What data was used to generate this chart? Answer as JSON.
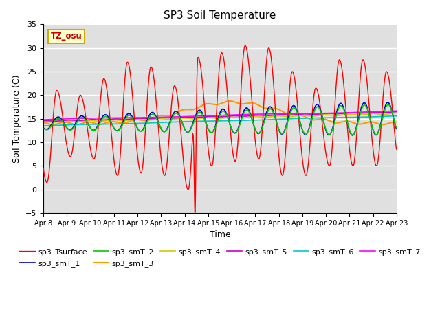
{
  "title": "SP3 Soil Temperature",
  "ylabel": "Soil Temperature (C)",
  "xlabel": "Time",
  "ylim": [
    -5,
    35
  ],
  "yticks": [
    -5,
    0,
    5,
    10,
    15,
    20,
    25,
    30,
    35
  ],
  "xtick_labels": [
    "Apr 8",
    "Apr 9",
    "Apr 10",
    "Apr 11",
    "Apr 12",
    "Apr 13",
    "Apr 14",
    "Apr 15",
    "Apr 16",
    "Apr 17",
    "Apr 18",
    "Apr 19",
    "Apr 20",
    "Apr 21",
    "Apr 22",
    "Apr 23"
  ],
  "annotation_text": "TZ_osu",
  "annotation_color": "#cc0000",
  "annotation_bg": "#ffffcc",
  "annotation_border": "#ccaa00",
  "background_color": "#e0e0e0",
  "series_colors": {
    "sp3_Tsurface": "#ff0000",
    "sp3_smT_1": "#0000cc",
    "sp3_smT_2": "#00cc00",
    "sp3_smT_3": "#ff9900",
    "sp3_smT_4": "#cccc00",
    "sp3_smT_5": "#cc00cc",
    "sp3_smT_6": "#00cccc",
    "sp3_smT_7": "#ff00ff"
  },
  "legend_entries": [
    "sp3_Tsurface",
    "sp3_smT_1",
    "sp3_smT_2",
    "sp3_smT_3",
    "sp3_smT_4",
    "sp3_smT_5",
    "sp3_smT_6",
    "sp3_smT_7"
  ]
}
